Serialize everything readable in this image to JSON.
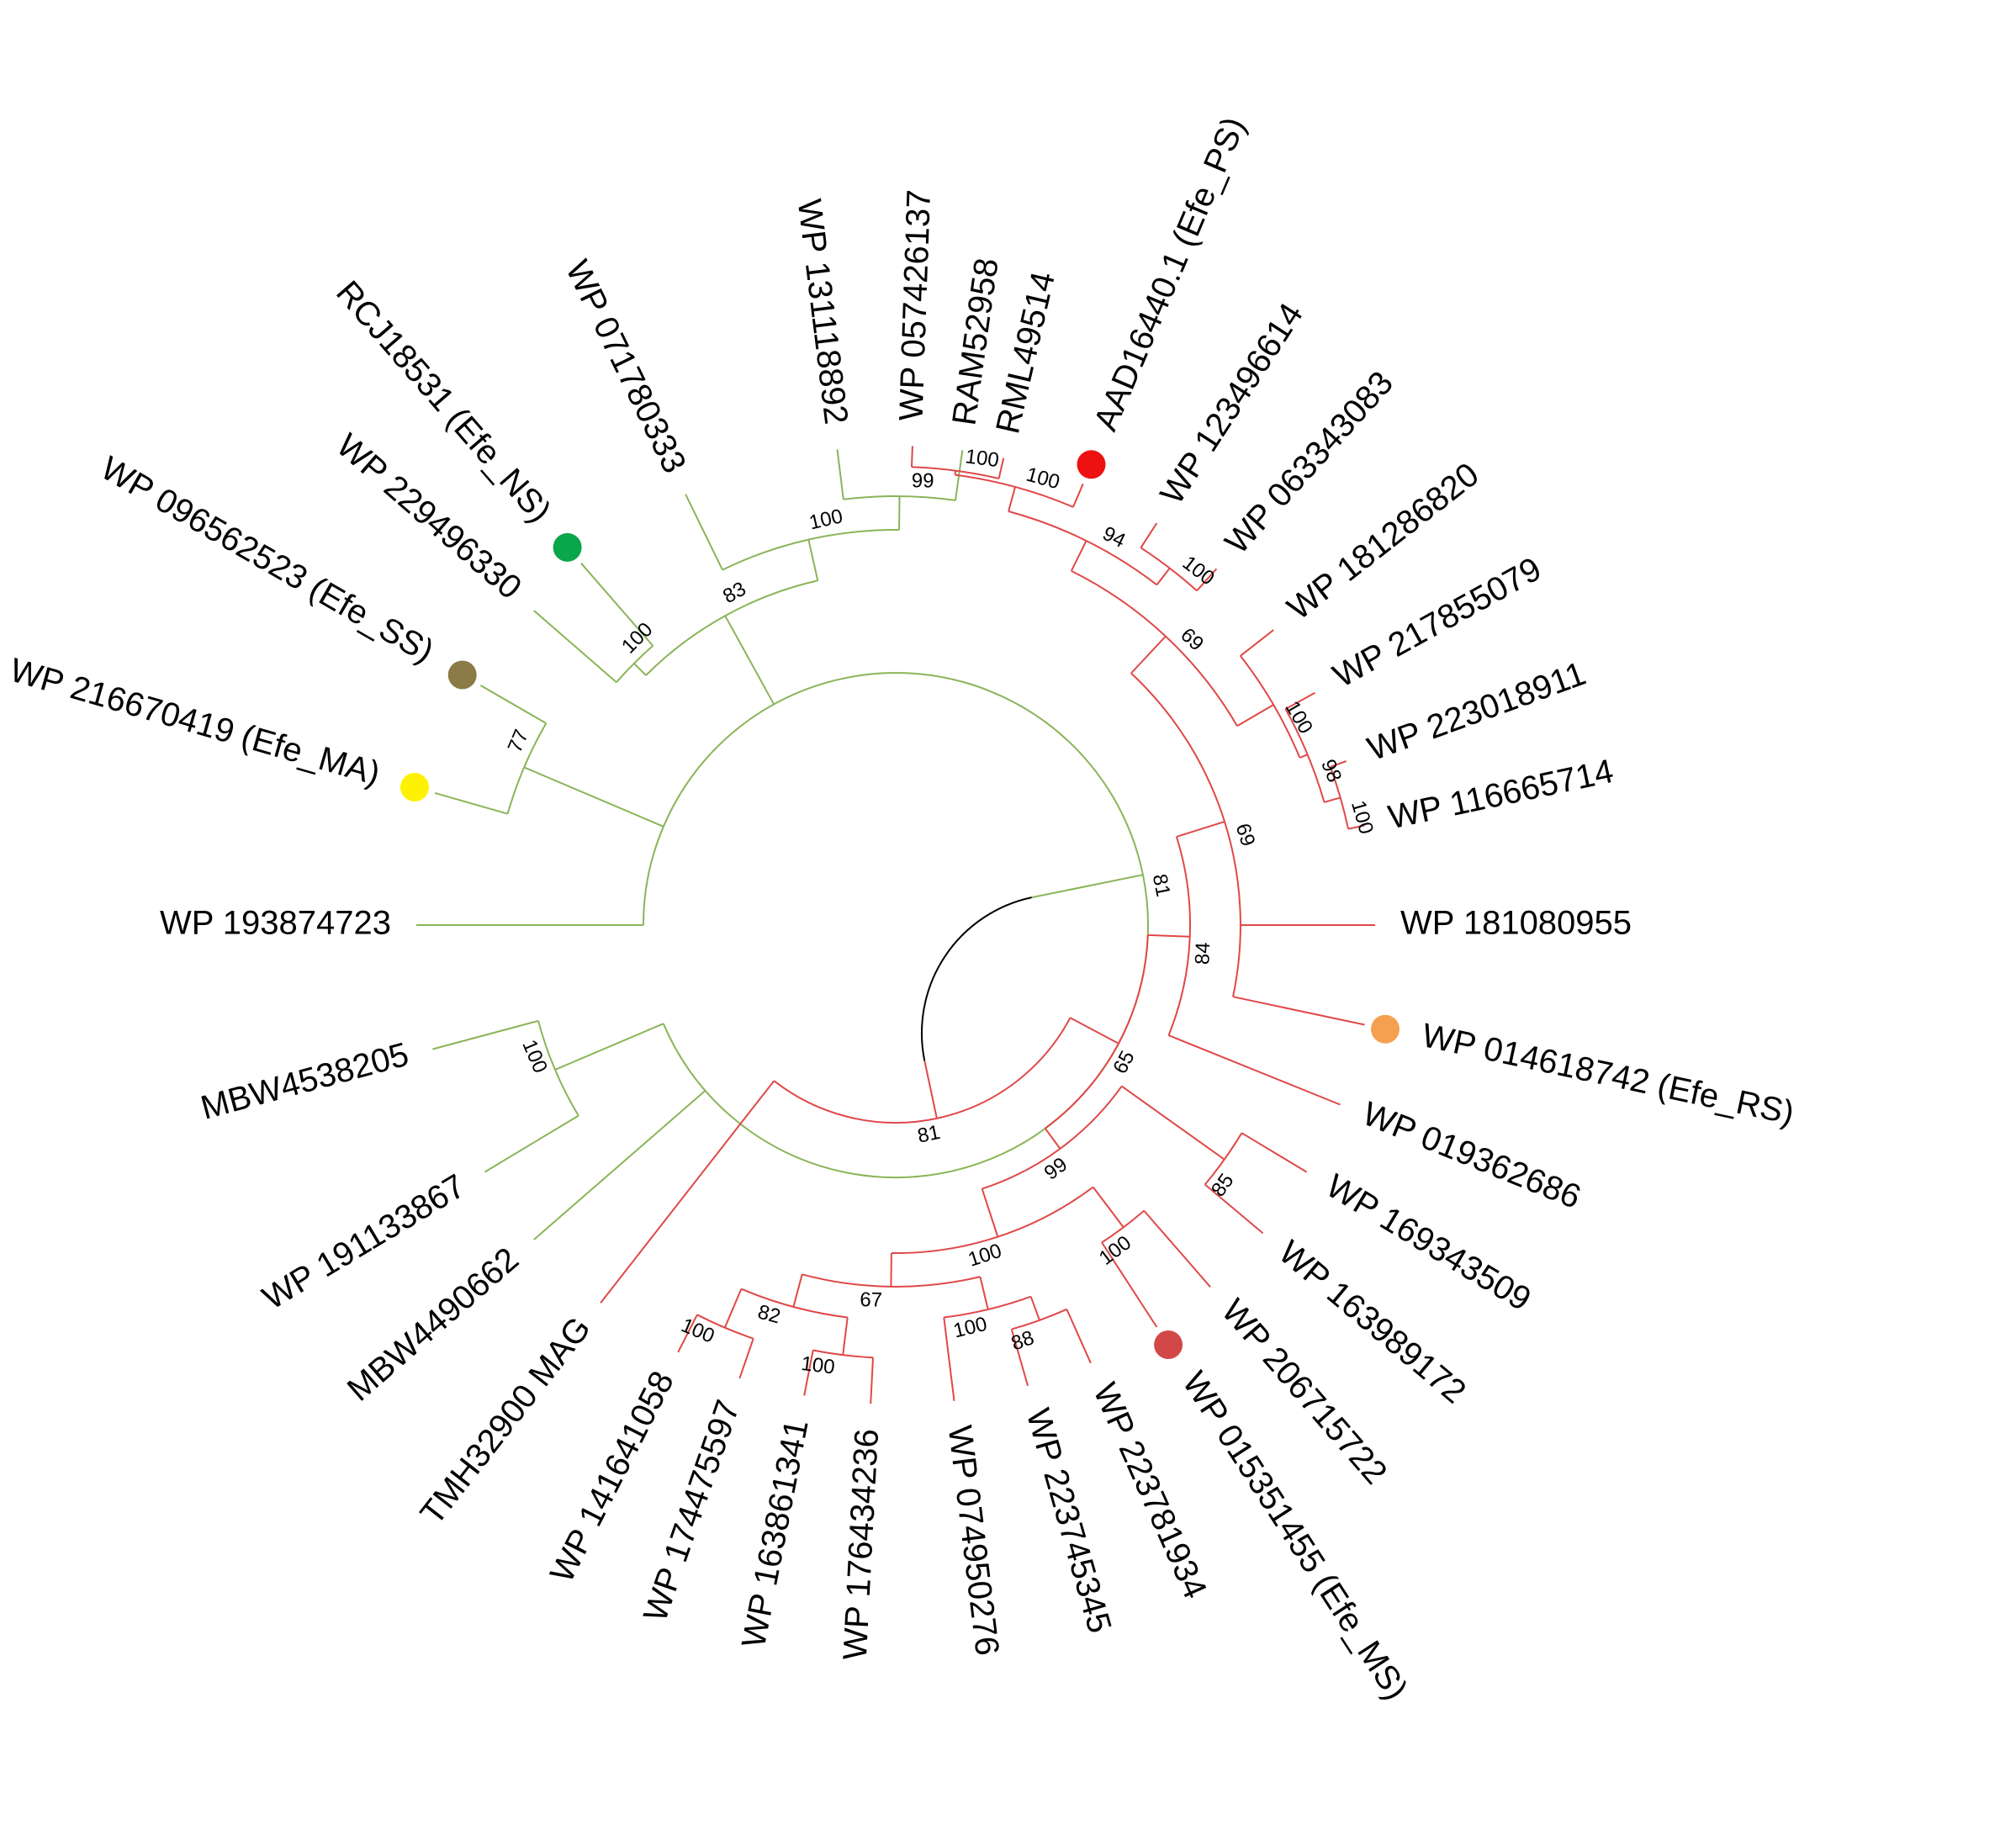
{
  "colors": {
    "clade_green": "#8ab458",
    "clade_red": "#e04848",
    "root": "#000000",
    "marker_green": "#0aa64a",
    "marker_brown": "#8a7a46",
    "marker_yellow": "#fff200",
    "marker_red": "#ee1111",
    "marker_orange": "#f5a050",
    "marker_darkred": "#d24848"
  },
  "leaves": [
    {
      "id": "L1",
      "label": "RAM52958",
      "angle": -82,
      "clade": "green"
    },
    {
      "id": "L2",
      "label": "WP 131118892",
      "angle": -97,
      "clade": "green"
    },
    {
      "id": "L3",
      "label": "WP 071780333",
      "angle": -116,
      "clade": "green"
    },
    {
      "id": "L4",
      "label": "RCJ18531 (Efe_NS)",
      "angle": -131,
      "clade": "green",
      "marker": "marker_green"
    },
    {
      "id": "L5",
      "label": "WP 229496330",
      "angle": -139,
      "clade": "green"
    },
    {
      "id": "L6",
      "label": "WP 096562523 (Efe_SS)",
      "angle": -150,
      "clade": "green",
      "marker": "marker_brown"
    },
    {
      "id": "L7",
      "label": "WP 216670419 (Efe_MA)",
      "angle": -164,
      "clade": "green",
      "marker": "marker_yellow"
    },
    {
      "id": "L8",
      "label": "WP 193874723",
      "angle": -180,
      "clade": "green"
    },
    {
      "id": "L9",
      "label": "MBW4538205",
      "angle": 165,
      "clade": "green"
    },
    {
      "id": "L10",
      "label": "WP 191133867",
      "angle": 149,
      "clade": "green"
    },
    {
      "id": "L11",
      "label": "MBW4490662",
      "angle": 139,
      "clade": "green"
    },
    {
      "id": "L12",
      "label": "TMH32900 MAG",
      "angle": 128,
      "clade": "red"
    },
    {
      "id": "L13",
      "label": "WP 141641058",
      "angle": 117,
      "clade": "red"
    },
    {
      "id": "L14",
      "label": "WP 174475597",
      "angle": 109,
      "clade": "red"
    },
    {
      "id": "L15",
      "label": "WP 163861341",
      "angle": 101,
      "clade": "red"
    },
    {
      "id": "L16",
      "label": "WP 176434236",
      "angle": 93,
      "clade": "red"
    },
    {
      "id": "L17",
      "label": "WP 074950276",
      "angle": 83,
      "clade": "red"
    },
    {
      "id": "L18",
      "label": "WP 223745345",
      "angle": 74,
      "clade": "red"
    },
    {
      "id": "L19",
      "label": "WP 223781934",
      "angle": 66,
      "clade": "red"
    },
    {
      "id": "L20",
      "label": "WP 015351455 (Efe_MS)",
      "angle": 57,
      "clade": "red",
      "marker": "marker_darkred"
    },
    {
      "id": "L21",
      "label": "WP 206715722",
      "angle": 49,
      "clade": "red"
    },
    {
      "id": "L22",
      "label": "WP 163989172",
      "angle": 40,
      "clade": "red"
    },
    {
      "id": "L23",
      "label": "WP 169343509",
      "angle": 31,
      "clade": "red"
    },
    {
      "id": "L24",
      "label": "WP 019362686",
      "angle": 22,
      "clade": "red"
    },
    {
      "id": "L25",
      "label": "WP 014618742 (Efe_RS)",
      "angle": 12,
      "clade": "red",
      "marker": "marker_orange"
    },
    {
      "id": "L26",
      "label": "WP 181080955",
      "angle": 0,
      "clade": "red"
    },
    {
      "id": "L27",
      "label": "WP 116665714",
      "angle": -12,
      "clade": "red"
    },
    {
      "id": "L28",
      "label": "WP 223018911",
      "angle": -20,
      "clade": "red"
    },
    {
      "id": "L29",
      "label": "WP 217855079",
      "angle": -29,
      "clade": "red"
    },
    {
      "id": "L30",
      "label": "WP 181286820",
      "angle": -38,
      "clade": "red"
    },
    {
      "id": "L31",
      "label": "WP 063343083",
      "angle": -48,
      "clade": "red"
    },
    {
      "id": "L32",
      "label": "WP 123496614",
      "angle": -57,
      "clade": "red"
    },
    {
      "id": "L33",
      "label": "AAD16440.1 (Efe_PS)",
      "angle": -67,
      "clade": "red",
      "marker": "marker_red"
    },
    {
      "id": "L34",
      "label": "RML49514",
      "angle": -77,
      "clade": "red"
    },
    {
      "id": "L35",
      "label": "WP 057426137",
      "angle": -88,
      "clade": "red"
    }
  ],
  "nodes": [
    {
      "id": "G1",
      "children": [
        "L1",
        "L2"
      ],
      "bootstrap": "99",
      "clade": "green"
    },
    {
      "id": "G2",
      "children": [
        "G1",
        "L3"
      ],
      "bootstrap": "100",
      "clade": "green"
    },
    {
      "id": "G3",
      "children": [
        "L4",
        "L5"
      ],
      "bootstrap": "100",
      "clade": "green"
    },
    {
      "id": "G4",
      "children": [
        "G2",
        "G3"
      ],
      "bootstrap": "83",
      "clade": "green"
    },
    {
      "id": "G5",
      "children": [
        "L6",
        "L7"
      ],
      "bootstrap": "77",
      "clade": "green"
    },
    {
      "id": "G6",
      "children": [
        "L9",
        "L10"
      ],
      "bootstrap": "100",
      "clade": "green"
    },
    {
      "id": "G7",
      "children": [
        "G4",
        "G5",
        "L8",
        "G6",
        "L11"
      ],
      "bootstrap": "81",
      "clade": "green"
    },
    {
      "id": "R1",
      "children": [
        "L34",
        "L35"
      ],
      "bootstrap": "100",
      "clade": "red"
    },
    {
      "id": "R2",
      "children": [
        "R1",
        "L33"
      ],
      "bootstrap": "100",
      "clade": "red"
    },
    {
      "id": "R3",
      "children": [
        "L31",
        "L32"
      ],
      "bootstrap": "100",
      "clade": "red"
    },
    {
      "id": "R4",
      "children": [
        "R2",
        "R3"
      ],
      "bootstrap": "94",
      "clade": "red"
    },
    {
      "id": "R5",
      "children": [
        "L27",
        "L28"
      ],
      "bootstrap": "100",
      "clade": "red"
    },
    {
      "id": "R6",
      "children": [
        "R5",
        "L29"
      ],
      "bootstrap": "98",
      "clade": "red"
    },
    {
      "id": "R7",
      "children": [
        "R6",
        "L30"
      ],
      "bootstrap": "100",
      "clade": "red"
    },
    {
      "id": "R8",
      "children": [
        "R4",
        "R7"
      ],
      "bootstrap": "69",
      "clade": "red"
    },
    {
      "id": "R9",
      "children": [
        "R8",
        "L26",
        "L25"
      ],
      "bootstrap": "69",
      "clade": "red"
    },
    {
      "id": "R10",
      "children": [
        "R9",
        "L24"
      ],
      "bootstrap": "84",
      "clade": "red"
    },
    {
      "id": "R11",
      "children": [
        "L22",
        "L23"
      ],
      "bootstrap": "85",
      "clade": "red"
    },
    {
      "id": "R12",
      "children": [
        "L20",
        "L21"
      ],
      "bootstrap": "100",
      "clade": "red"
    },
    {
      "id": "R13",
      "children": [
        "L18",
        "L19"
      ],
      "bootstrap": "88",
      "clade": "red"
    },
    {
      "id": "R14",
      "children": [
        "R13",
        "L17"
      ],
      "bootstrap": "100",
      "clade": "red"
    },
    {
      "id": "R15",
      "children": [
        "L15",
        "L16"
      ],
      "bootstrap": "100",
      "clade": "red"
    },
    {
      "id": "R16",
      "children": [
        "L13",
        "L14"
      ],
      "bootstrap": "100",
      "clade": "red"
    },
    {
      "id": "R17",
      "children": [
        "R16",
        "R15"
      ],
      "bootstrap": "82",
      "clade": "red"
    },
    {
      "id": "R18",
      "children": [
        "R17",
        "R14"
      ],
      "bootstrap": "67",
      "clade": "red"
    },
    {
      "id": "R19",
      "children": [
        "R18",
        "R12"
      ],
      "bootstrap": "100",
      "clade": "red"
    },
    {
      "id": "R20",
      "children": [
        "R19",
        "R11"
      ],
      "bootstrap": "99",
      "clade": "red"
    },
    {
      "id": "R21",
      "children": [
        "R10",
        "R20"
      ],
      "bootstrap": "65",
      "clade": "red"
    },
    {
      "id": "R22",
      "children": [
        "R21",
        "L12"
      ],
      "bootstrap": "81",
      "clade": "red"
    },
    {
      "id": "ROOT",
      "children": [
        "G7",
        "R22"
      ],
      "bootstrap": "",
      "clade": "root"
    }
  ]
}
